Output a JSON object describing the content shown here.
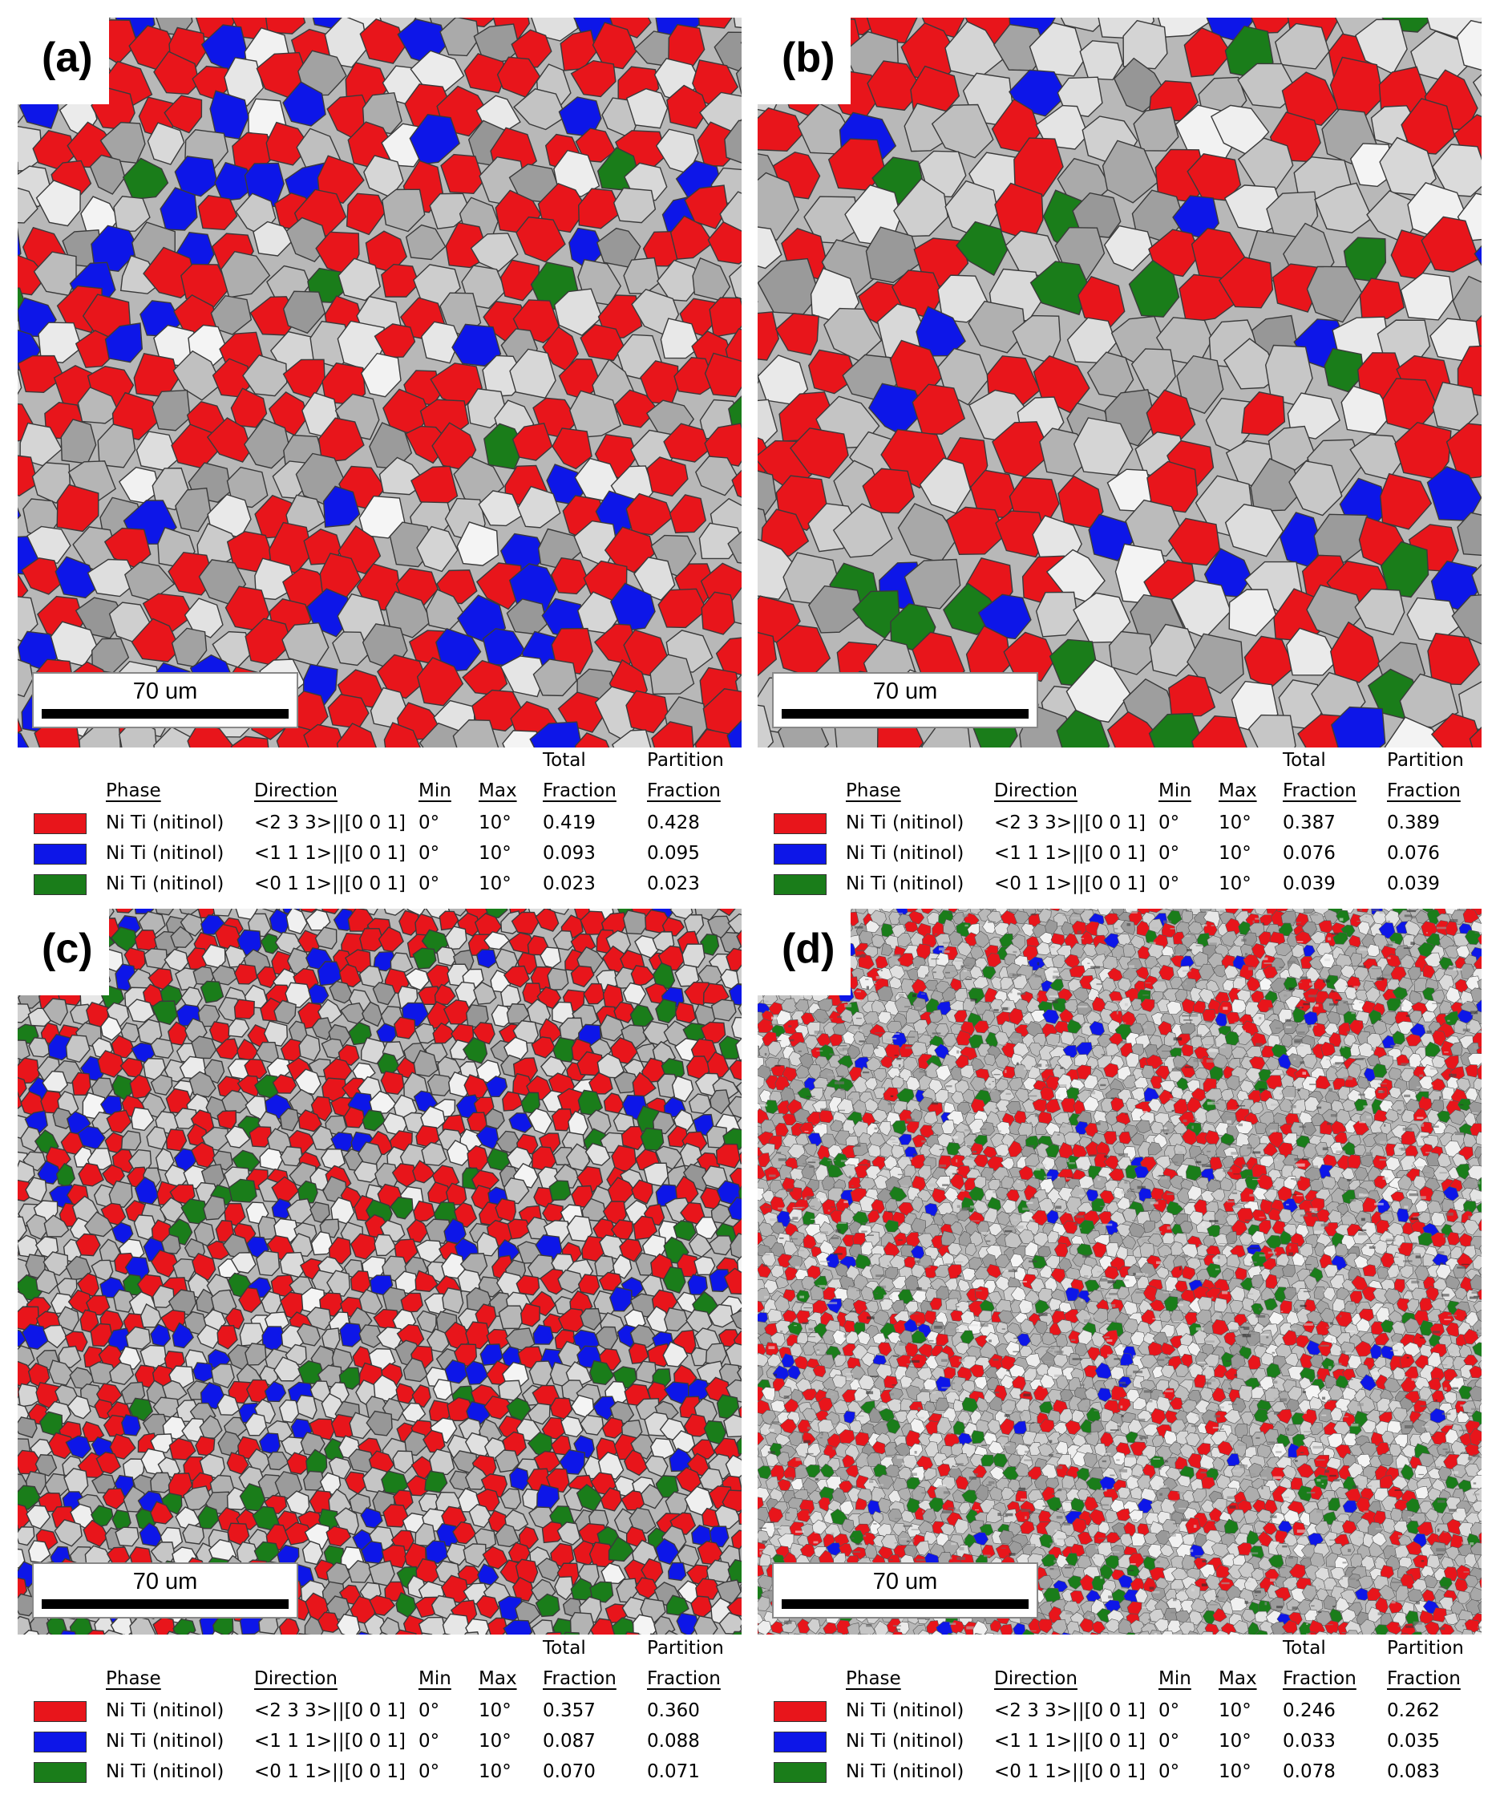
{
  "panels": [
    {
      "label": "(a)",
      "scalebar": "70 um",
      "legend": {
        "header": {
          "total_top": "Total",
          "partition_top": "Partition",
          "phase": "Phase",
          "direction": "Direction",
          "min": "Min",
          "max": "Max",
          "total": "Fraction",
          "partition": "Fraction"
        },
        "rows": [
          {
            "color": "#e8151b",
            "phase": "Ni Ti (nitinol)",
            "direction": "<2 3 3>||[0 0 1]",
            "min": "0°",
            "max": "10°",
            "total": "0.419",
            "partition": "0.428"
          },
          {
            "color": "#0d16e8",
            "phase": "Ni Ti (nitinol)",
            "direction": "<1 1 1>||[0 0 1]",
            "min": "0°",
            "max": "10°",
            "total": "0.093",
            "partition": "0.095"
          },
          {
            "color": "#1a7d1a",
            "phase": "Ni Ti (nitinol)",
            "direction": "<0 1 1>||[0 0 1]",
            "min": "0°",
            "max": "10°",
            "total": "0.023",
            "partition": "0.023"
          }
        ]
      }
    },
    {
      "label": "(b)",
      "scalebar": "70 um",
      "legend": {
        "header": {
          "total_top": "Total",
          "partition_top": "Partition",
          "phase": "Phase",
          "direction": "Direction",
          "min": "Min",
          "max": "Max",
          "total": "Fraction",
          "partition": "Fraction"
        },
        "rows": [
          {
            "color": "#e8151b",
            "phase": "Ni Ti (nitinol)",
            "direction": "<2 3 3>||[0 0 1]",
            "min": "0°",
            "max": "10°",
            "total": "0.387",
            "partition": "0.389"
          },
          {
            "color": "#0d16e8",
            "phase": "Ni Ti (nitinol)",
            "direction": "<1 1 1>||[0 0 1]",
            "min": "0°",
            "max": "10°",
            "total": "0.076",
            "partition": "0.076"
          },
          {
            "color": "#1a7d1a",
            "phase": "Ni Ti (nitinol)",
            "direction": "<0 1 1>||[0 0 1]",
            "min": "0°",
            "max": "10°",
            "total": "0.039",
            "partition": "0.039"
          }
        ]
      }
    },
    {
      "label": "(c)",
      "scalebar": "70 um",
      "legend": {
        "header": {
          "total_top": "Total",
          "partition_top": "Partition",
          "phase": "Phase",
          "direction": "Direction",
          "min": "Min",
          "max": "Max",
          "total": "Fraction",
          "partition": "Fraction"
        },
        "rows": [
          {
            "color": "#e8151b",
            "phase": "Ni Ti (nitinol)",
            "direction": "<2 3 3>||[0 0 1]",
            "min": "0°",
            "max": "10°",
            "total": "0.357",
            "partition": "0.360"
          },
          {
            "color": "#0d16e8",
            "phase": "Ni Ti (nitinol)",
            "direction": "<1 1 1>||[0 0 1]",
            "min": "0°",
            "max": "10°",
            "total": "0.087",
            "partition": "0.088"
          },
          {
            "color": "#1a7d1a",
            "phase": "Ni Ti (nitinol)",
            "direction": "<0 1 1>||[0 0 1]",
            "min": "0°",
            "max": "10°",
            "total": "0.070",
            "partition": "0.071"
          }
        ]
      }
    },
    {
      "label": "(d)",
      "scalebar": "70 um",
      "legend": {
        "header": {
          "total_top": "Total",
          "partition_top": "Partition",
          "phase": "Phase",
          "direction": "Direction",
          "min": "Min",
          "max": "Max",
          "total": "Fraction",
          "partition": "Fraction"
        },
        "rows": [
          {
            "color": "#e8151b",
            "phase": "Ni Ti (nitinol)",
            "direction": "<2 3 3>||[0 0 1]",
            "min": "0°",
            "max": "10°",
            "total": "0.246",
            "partition": "0.262"
          },
          {
            "color": "#0d16e8",
            "phase": "Ni Ti (nitinol)",
            "direction": "<1 1 1>||[0 0 1]",
            "min": "0°",
            "max": "10°",
            "total": "0.033",
            "partition": "0.035"
          },
          {
            "color": "#1a7d1a",
            "phase": "Ni Ti (nitinol)",
            "direction": "<0 1 1>||[0 0 1]",
            "min": "0°",
            "max": "10°",
            "total": "0.078",
            "partition": "0.083"
          }
        ]
      }
    }
  ]
}
